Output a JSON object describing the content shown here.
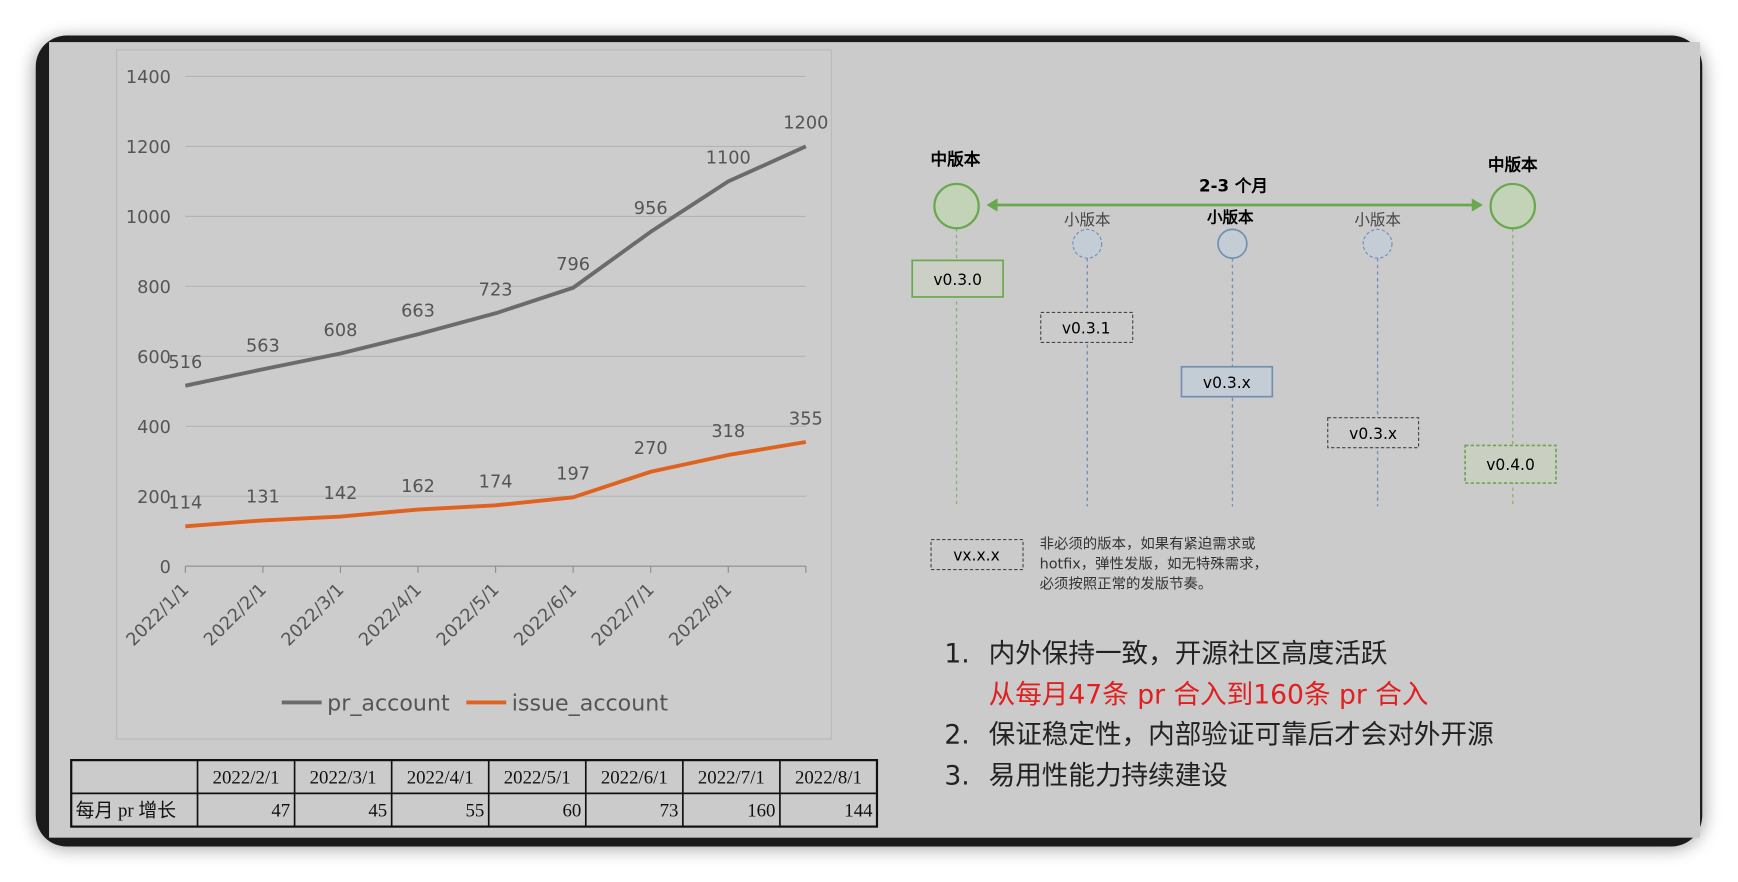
{
  "chart_data": {
    "type": "line",
    "categories": [
      "2022/1/1",
      "2022/2/1",
      "2022/3/1",
      "2022/4/1",
      "2022/5/1",
      "2022/6/1",
      "2022/7/1",
      "2022/8/1",
      null
    ],
    "series": [
      {
        "name": "pr_account",
        "color": "#6b6b6b",
        "values": [
          516,
          563,
          608,
          663,
          723,
          796,
          956,
          1100,
          1200
        ]
      },
      {
        "name": "issue_account",
        "color": "#e0621f",
        "values": [
          114,
          131,
          142,
          162,
          174,
          197,
          270,
          318,
          355
        ]
      }
    ],
    "ylim": [
      0,
      1400
    ],
    "yticks": [
      0,
      200,
      400,
      600,
      800,
      1000,
      1200,
      1400
    ],
    "grid": true,
    "legend": "bottom"
  },
  "table": {
    "header": [
      "2022/2/1",
      "2022/3/1",
      "2022/4/1",
      "2022/5/1",
      "2022/6/1",
      "2022/7/1",
      "2022/8/1"
    ],
    "row_label": "每月 pr 增长",
    "row": [
      "47",
      "45",
      "55",
      "60",
      "73",
      "160",
      "144"
    ]
  },
  "diagram": {
    "major_left": "中版本",
    "major_right": "中版本",
    "arrow_label": "2-3 个月",
    "minor": [
      "小版本",
      "小版本",
      "小版本"
    ],
    "versions": [
      "v0.3.0",
      "v0.3.1",
      "v0.3.x",
      "v0.3.x",
      "v0.4.0"
    ],
    "legend_box": "vx.x.x",
    "legend_text": [
      "非必须的版本，如果有紧迫需求或",
      "hotfix，弹性发版，如无特殊需求，",
      "必须按照正常的发版节奏。"
    ]
  },
  "bullets": [
    {
      "num": "1.",
      "text": "内外保持一致，开源社区高度活跃",
      "sub": "从每月47条 pr 合入到160条 pr 合入"
    },
    {
      "num": "2.",
      "text": "保证稳定性，内部验证可靠后才会对外开源"
    },
    {
      "num": "3.",
      "text": "易用性能力持续建设"
    }
  ]
}
